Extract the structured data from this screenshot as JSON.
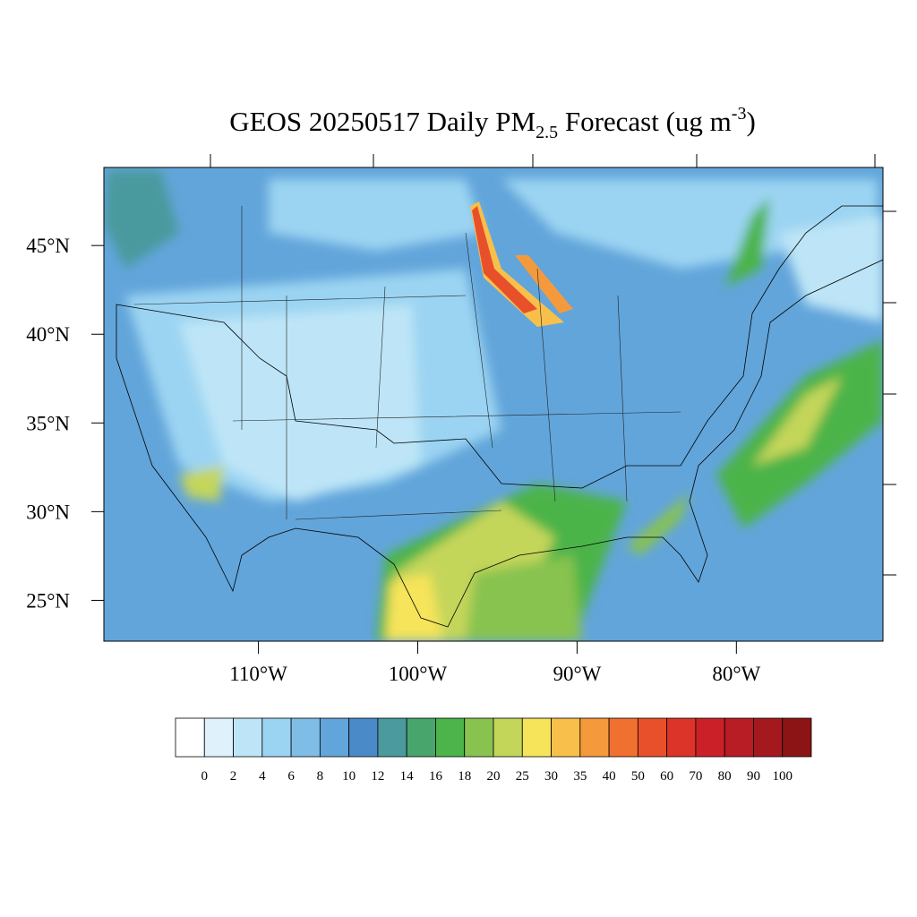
{
  "map": {
    "title": {
      "main": "GEOS 20250517 Daily PM",
      "sub": "2.5",
      "rest": " Forecast (ug m",
      "sup": "-3",
      "close": ")"
    },
    "xlim": [
      -119.7,
      -70.8
    ],
    "ylim": [
      22.7,
      49.4
    ],
    "xticks": [
      {
        "value": -110,
        "label": "110°W"
      },
      {
        "value": -100,
        "label": "100°W"
      },
      {
        "value": -90,
        "label": "90°W"
      },
      {
        "value": -80,
        "label": "80°W"
      }
    ],
    "yticks": [
      {
        "value": 45,
        "label": "45°N"
      },
      {
        "value": 40,
        "label": "40°N"
      },
      {
        "value": 35,
        "label": "35°N"
      },
      {
        "value": 30,
        "label": "30°N"
      },
      {
        "value": 25,
        "label": "25°N"
      }
    ],
    "colorbar": {
      "levels": [
        0,
        2,
        4,
        6,
        8,
        10,
        12,
        14,
        16,
        18,
        20,
        25,
        30,
        35,
        40,
        50,
        60,
        70,
        80,
        90,
        100
      ],
      "colors": [
        "#ffffff",
        "#dff2fb",
        "#bde5f7",
        "#9bd4f2",
        "#7fbde6",
        "#62a5da",
        "#4a8ac8",
        "#4a9a9e",
        "#48a56c",
        "#4cb44a",
        "#88c34f",
        "#c4d65a",
        "#f6e45a",
        "#f8c04a",
        "#f59a3c",
        "#f07030",
        "#e8502c",
        "#dc3428",
        "#cc2028",
        "#b81c24",
        "#a4191e",
        "#8c1414"
      ]
    }
  }
}
